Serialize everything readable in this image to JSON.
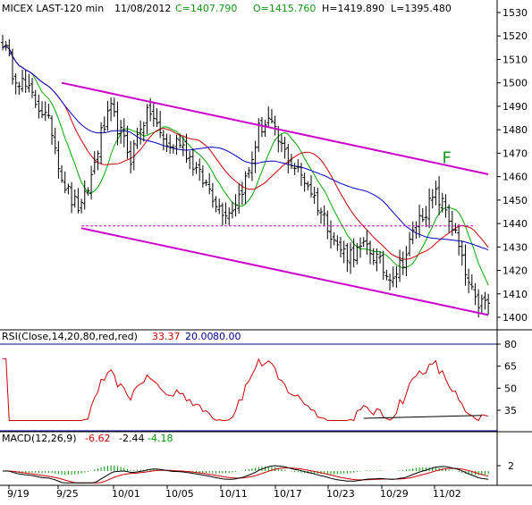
{
  "chart_data": [
    {
      "type": "candlestick",
      "panel": "price",
      "header": {
        "symbol": "MICEX LAST-120 min",
        "date": "11/08/2012",
        "close": "C=1407.790",
        "open": "O=1415.760",
        "high": "H=1419.890",
        "low": "L=1395.480"
      },
      "ylim": [
        1395,
        1535
      ],
      "yticks": [
        1400,
        1410,
        1420,
        1430,
        1440,
        1450,
        1460,
        1470,
        1480,
        1490,
        1500,
        1510,
        1520,
        1530
      ],
      "x_ticks": [
        "9/19",
        "9/25",
        "10/01",
        "10/05",
        "10/11",
        "10/17",
        "10/23",
        "10/29",
        "11/02"
      ],
      "close_path": [
        [
          0,
          1518
        ],
        [
          3,
          1505
        ],
        [
          6,
          1500
        ],
        [
          9,
          1494
        ],
        [
          12,
          1488
        ],
        [
          15,
          1480
        ],
        [
          18,
          1460
        ],
        [
          21,
          1450
        ],
        [
          24,
          1446
        ],
        [
          27,
          1460
        ],
        [
          30,
          1478
        ],
        [
          33,
          1488
        ],
        [
          36,
          1478
        ],
        [
          39,
          1468
        ],
        [
          42,
          1482
        ],
        [
          45,
          1488
        ],
        [
          48,
          1478
        ],
        [
          51,
          1472
        ],
        [
          54,
          1476
        ],
        [
          57,
          1468
        ],
        [
          60,
          1460
        ],
        [
          63,
          1455
        ],
        [
          66,
          1447
        ],
        [
          69,
          1445
        ],
        [
          72,
          1452
        ],
        [
          75,
          1462
        ],
        [
          78,
          1480
        ],
        [
          81,
          1484
        ],
        [
          84,
          1475
        ],
        [
          87,
          1468
        ],
        [
          90,
          1462
        ],
        [
          93,
          1457
        ],
        [
          96,
          1448
        ],
        [
          99,
          1440
        ],
        [
          102,
          1430
        ],
        [
          105,
          1427
        ],
        [
          108,
          1428
        ],
        [
          111,
          1430
        ],
        [
          114,
          1425
        ],
        [
          117,
          1418
        ],
        [
          120,
          1420
        ],
        [
          123,
          1427
        ],
        [
          126,
          1440
        ],
        [
          129,
          1446
        ],
        [
          132,
          1452
        ],
        [
          135,
          1446
        ],
        [
          138,
          1435
        ],
        [
          141,
          1418
        ],
        [
          144,
          1406
        ]
      ],
      "lines": [
        {
          "name": "resistance",
          "color": "#cc00cc",
          "points": [
            [
              18,
              1500
            ],
            [
              148,
              1461
            ]
          ]
        },
        {
          "name": "support",
          "color": "#cc00cc",
          "points": [
            [
              24,
              1438
            ],
            [
              148,
              1401
            ]
          ]
        },
        {
          "name": "support-dashed",
          "color": "#cc00cc",
          "style": "dashed",
          "points": [
            [
              24,
              1439
            ],
            [
              144,
              1439
            ]
          ]
        }
      ],
      "moving_averages": [
        {
          "color": "#00aa00",
          "period": 10
        },
        {
          "color": "#cc0000",
          "period": 20
        },
        {
          "color": "#0000cc",
          "period": 40
        }
      ],
      "annotation": {
        "text": "F",
        "color": "#119911",
        "at": [
          135,
          1468
        ]
      }
    },
    {
      "type": "line",
      "panel": "rsi",
      "header": {
        "label": "RSI(Close,14,20,80,red,red)",
        "value": "33.37",
        "low": "20.00",
        "high": "80.00"
      },
      "ylim": [
        27,
        88
      ],
      "yticks": [
        35,
        50,
        65,
        80
      ],
      "levels": [
        80,
        20
      ],
      "line_color": "#cc0000"
    },
    {
      "type": "line",
      "panel": "macd",
      "header": {
        "label": "MACD(12,26,9)",
        "macd": "-6.62",
        "signal": "-2.44",
        "hist": "-4.18"
      },
      "yticks": [
        2
      ],
      "colors": {
        "macd": "#000000",
        "signal": "#cc0000",
        "hist": "#009900"
      }
    }
  ]
}
